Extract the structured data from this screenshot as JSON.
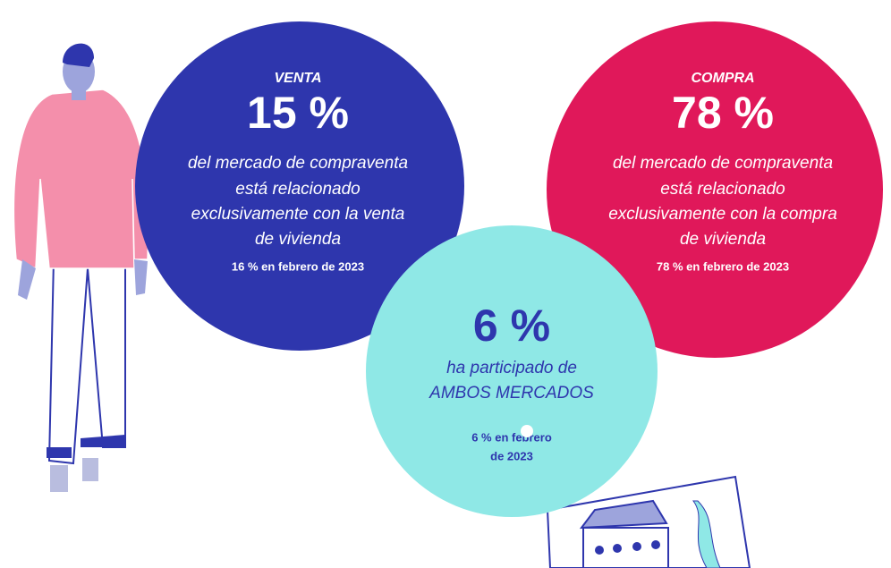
{
  "circles": [
    {
      "label": "VENTA",
      "value": "15 %",
      "description": [
        "del mercado de compraventa",
        "está relacionado",
        "exclusivamente con la venta",
        "de vivienda"
      ],
      "note": [
        "16 % en febrero de 2023"
      ]
    },
    {
      "label": "COMPRA",
      "value": "78 %",
      "description": [
        "del mercado de compraventa",
        "está relacionado",
        "exclusivamente con la compra",
        "de vivienda"
      ],
      "note": [
        "78 % en febrero de 2023"
      ]
    },
    {
      "value": "6 %",
      "description": [
        "ha participado de",
        "AMBOS MERCADOS"
      ],
      "note": [
        "6 % en febrero",
        "de 2023"
      ]
    }
  ]
}
